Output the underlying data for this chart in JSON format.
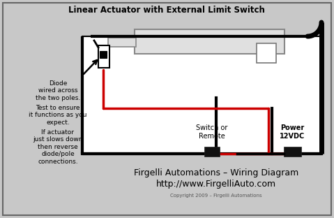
{
  "title": "Linear Actuator with External Limit Switch",
  "subtitle1": "Firgelli Automations – Wiring Diagram",
  "subtitle2": "http://www.FirgelliAuto.com",
  "copyright": "Copyright 2009 – Firgelli Automations",
  "bg_color": "#c8c8c8",
  "border_color": "#666666",
  "text_color": "#000000",
  "white_bg": "#ffffff",
  "label1": "Diode\nwired across\nthe two poles.",
  "label2": "Test to ensure\nit functions as you\nexpect.",
  "label3": "If actuator\njust slows down\nthen reverse\ndiode/pole\nconnections.",
  "label_switch": "Switch or\nRemote",
  "label_power": "Power\n12VDC",
  "wire_black": "#000000",
  "wire_red": "#cc0000",
  "connector_color": "#111111",
  "actuator_fill": "#e0e0e0",
  "actuator_edge": "#888888"
}
